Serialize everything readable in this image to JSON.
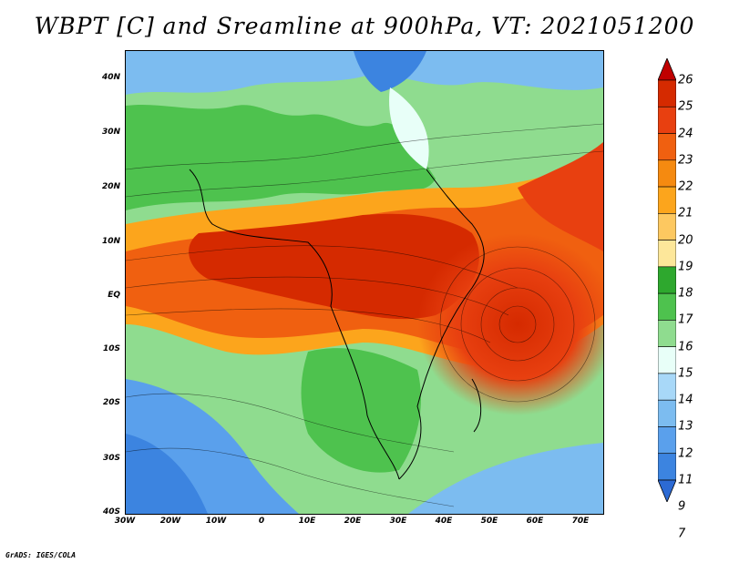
{
  "title": "WBPT [C] and Sreamline at 900hPa, VT: 2021051200",
  "credit": "GrADS: IGES/COLA",
  "lat_labels": [
    "40N",
    "30N",
    "20N",
    "10N",
    "EQ",
    "10S",
    "20S",
    "30S",
    "40S"
  ],
  "lon_labels": [
    "30W",
    "20W",
    "10W",
    "0",
    "10E",
    "20E",
    "30E",
    "40E",
    "50E",
    "60E",
    "70E"
  ],
  "colorbar": {
    "labels": [
      "26",
      "25",
      "24",
      "23",
      "22",
      "21",
      "20",
      "19",
      "18",
      "17",
      "16",
      "15",
      "14",
      "13",
      "12",
      "11",
      "9",
      "7"
    ],
    "colors": [
      "#c00000",
      "#d52a00",
      "#e84010",
      "#f06010",
      "#f58a10",
      "#fca51c",
      "#fdc860",
      "#fde79a",
      "#2ea82e",
      "#4ec24e",
      "#8fdc8f",
      "#e8fff8",
      "#a8d8f8",
      "#7cbcf0",
      "#5aa0ec",
      "#3c84e0",
      "#2c6ad4"
    ]
  }
}
